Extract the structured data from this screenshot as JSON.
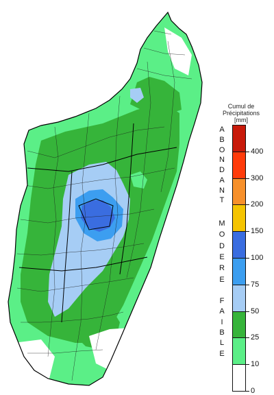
{
  "legend": {
    "title_line1": "Cumul de",
    "title_line2": "Précipitations",
    "title_line3": "[mm]",
    "categories": [
      {
        "name": "abondant",
        "letters": [
          "A",
          "B",
          "O",
          "N",
          "D",
          "A",
          "N",
          "T"
        ]
      },
      {
        "name": "modere",
        "letters": [
          "M",
          "O",
          "D",
          "E",
          "R",
          "E"
        ]
      },
      {
        "name": "faible",
        "letters": [
          "F",
          "A",
          "I",
          "B",
          "L",
          "E"
        ]
      }
    ],
    "classes": [
      {
        "label": "0",
        "color": "#ffffff"
      },
      {
        "label": "10",
        "color": "#5bef87"
      },
      {
        "label": "25",
        "color": "#36b43a"
      },
      {
        "label": "50",
        "color": "#a6cdf5"
      },
      {
        "label": "75",
        "color": "#3c9ef0"
      },
      {
        "label": "100",
        "color": "#3a6de0"
      },
      {
        "label": "150",
        "color": "#f5c400"
      },
      {
        "label": "200",
        "color": "#f7902a"
      },
      {
        "label": "300",
        "color": "#ff3b0a"
      },
      {
        "label": "400",
        "color": "#c81a0a"
      }
    ]
  }
}
